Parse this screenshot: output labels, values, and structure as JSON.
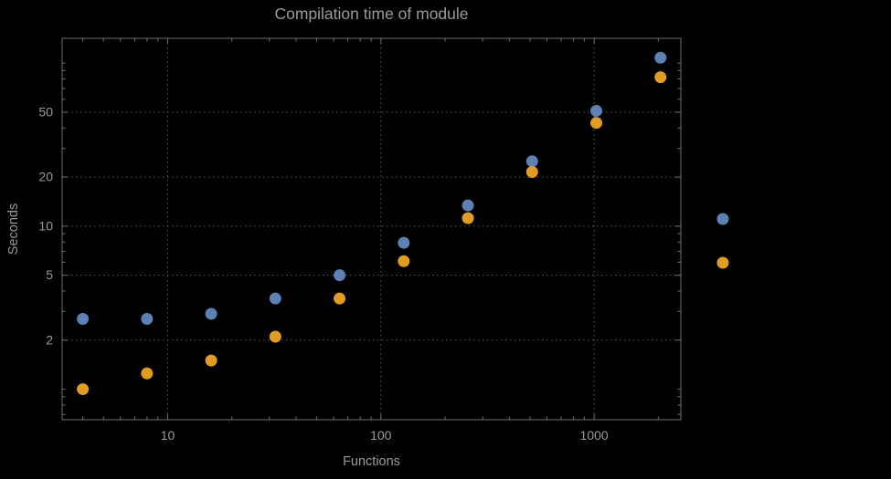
{
  "colors": {
    "background": "#000000",
    "frame": "#6f6f6f",
    "grid": "#5c5c5c",
    "text": "#9a9a9a",
    "series_blue": "#5e81b5",
    "series_orange": "#e19c24"
  },
  "chart_data": {
    "type": "scatter",
    "title": "Compilation time of module",
    "xlabel": "Functions",
    "ylabel": "Seconds",
    "x_scale": "log",
    "y_scale": "log",
    "grid": true,
    "x_ticks": [
      10,
      100,
      1000
    ],
    "y_ticks": [
      2,
      5,
      10,
      20,
      50
    ],
    "x_range": [
      3.2,
      2550
    ],
    "y_range": [
      0.65,
      142
    ],
    "x": [
      4,
      8,
      16,
      32,
      64,
      128,
      256,
      512,
      1024,
      2048
    ],
    "series": [
      {
        "name": "series-blue",
        "color": "#5e81b5",
        "values": [
          2.7,
          2.7,
          2.9,
          3.6,
          5.0,
          7.9,
          13.4,
          25,
          51,
          108
        ]
      },
      {
        "name": "series-orange",
        "color": "#e19c24",
        "values": [
          1.0,
          1.25,
          1.5,
          2.1,
          3.6,
          6.1,
          11.2,
          21.5,
          43,
          82
        ]
      }
    ],
    "legend": {
      "position": "right-outside",
      "entries": [
        {
          "marker_color": "#5e81b5",
          "label": ""
        },
        {
          "marker_color": "#e19c24",
          "label": ""
        }
      ]
    }
  }
}
